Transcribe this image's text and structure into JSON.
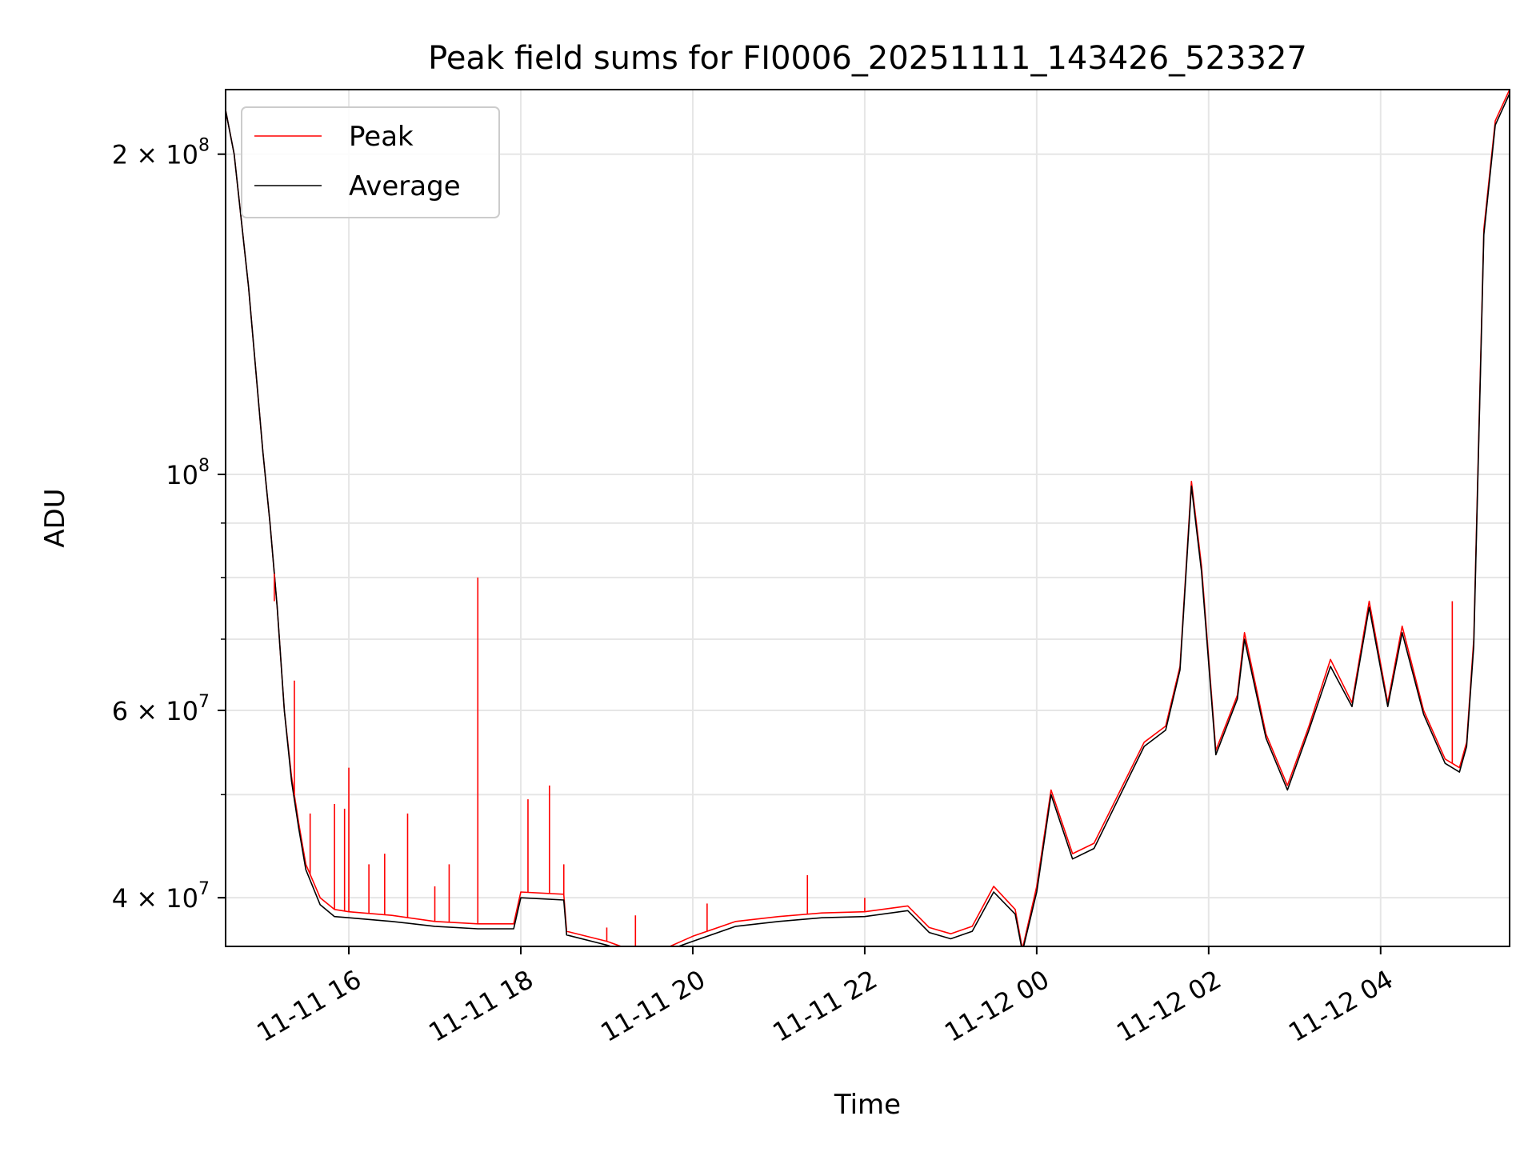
{
  "chart_data": {
    "type": "line",
    "title": "Peak field sums for FI0006_20251111_143426_523327",
    "xlabel": "Time",
    "ylabel": "ADU",
    "yscale": "log",
    "grid": true,
    "legend_placement": "top-left",
    "xlim": [
      "2025-11-11 14:34",
      "2025-11-12 05:30"
    ],
    "ylim": [
      36000000,
      230000000
    ],
    "x_ticks": [
      {
        "value": "2025-11-11 16:00",
        "label": "11-11 16"
      },
      {
        "value": "2025-11-11 18:00",
        "label": "11-11 18"
      },
      {
        "value": "2025-11-11 20:00",
        "label": "11-11 20"
      },
      {
        "value": "2025-11-11 22:00",
        "label": "11-11 22"
      },
      {
        "value": "2025-11-12 00:00",
        "label": "11-12 00"
      },
      {
        "value": "2025-11-12 02:00",
        "label": "11-12 02"
      },
      {
        "value": "2025-11-12 04:00",
        "label": "11-12 04"
      }
    ],
    "y_ticks_major": [
      {
        "value": 40000000,
        "label_base": "4 × 10",
        "label_exp": "7"
      },
      {
        "value": 60000000,
        "label_base": "6 × 10",
        "label_exp": "7"
      },
      {
        "value": 100000000,
        "label_base": "10",
        "label_exp": "8"
      },
      {
        "value": 200000000,
        "label_base": "2 × 10",
        "label_exp": "8"
      }
    ],
    "y_ticks_minor": [
      50000000,
      70000000,
      80000000,
      90000000
    ],
    "series": [
      {
        "name": "Peak",
        "color": "#ff0000",
        "points": [
          [
            "2025-11-11 14:34",
            220000000
          ],
          [
            "2025-11-11 14:40",
            200000000
          ],
          [
            "2025-11-11 14:50",
            150000000
          ],
          [
            "2025-11-11 15:00",
            105000000
          ],
          [
            "2025-11-11 15:05",
            90000000
          ],
          [
            "2025-11-11 15:10",
            75000000
          ],
          [
            "2025-11-11 15:15",
            60000000
          ],
          [
            "2025-11-11 15:20",
            52000000
          ],
          [
            "2025-11-11 15:25",
            47000000
          ],
          [
            "2025-11-11 15:30",
            43000000
          ],
          [
            "2025-11-11 15:40",
            40000000
          ],
          [
            "2025-11-11 15:50",
            39000000
          ],
          [
            "2025-11-11 16:00",
            38800000
          ],
          [
            "2025-11-11 16:30",
            38500000
          ],
          [
            "2025-11-11 17:00",
            38000000
          ],
          [
            "2025-11-11 17:30",
            37800000
          ],
          [
            "2025-11-11 17:55",
            37800000
          ],
          [
            "2025-11-11 18:00",
            40500000
          ],
          [
            "2025-11-11 18:30",
            40300000
          ],
          [
            "2025-11-11 18:32",
            37200000
          ],
          [
            "2025-11-11 19:00",
            36400000
          ],
          [
            "2025-11-11 19:15",
            35800000
          ],
          [
            "2025-11-11 19:40",
            35800000
          ],
          [
            "2025-11-11 20:00",
            36800000
          ],
          [
            "2025-11-11 20:30",
            38000000
          ],
          [
            "2025-11-11 21:00",
            38400000
          ],
          [
            "2025-11-11 21:30",
            38700000
          ],
          [
            "2025-11-11 22:00",
            38800000
          ],
          [
            "2025-11-11 22:30",
            39300000
          ],
          [
            "2025-11-11 22:45",
            37500000
          ],
          [
            "2025-11-11 23:00",
            37000000
          ],
          [
            "2025-11-11 23:15",
            37600000
          ],
          [
            "2025-11-11 23:30",
            41000000
          ],
          [
            "2025-11-11 23:45",
            39000000
          ],
          [
            "2025-11-11 23:50",
            35800000
          ],
          [
            "2025-11-12 00:00",
            41000000
          ],
          [
            "2025-11-12 00:10",
            50500000
          ],
          [
            "2025-11-12 00:25",
            44000000
          ],
          [
            "2025-11-12 00:40",
            45000000
          ],
          [
            "2025-11-12 01:00",
            51000000
          ],
          [
            "2025-11-12 01:15",
            56000000
          ],
          [
            "2025-11-12 01:30",
            58000000
          ],
          [
            "2025-11-12 01:40",
            66000000
          ],
          [
            "2025-11-12 01:48",
            98500000
          ],
          [
            "2025-11-12 01:55",
            82000000
          ],
          [
            "2025-11-12 02:05",
            55000000
          ],
          [
            "2025-11-12 02:20",
            62000000
          ],
          [
            "2025-11-12 02:25",
            71000000
          ],
          [
            "2025-11-12 02:40",
            57000000
          ],
          [
            "2025-11-12 02:55",
            51000000
          ],
          [
            "2025-11-12 03:10",
            58000000
          ],
          [
            "2025-11-12 03:25",
            67000000
          ],
          [
            "2025-11-12 03:40",
            61000000
          ],
          [
            "2025-11-12 03:52",
            76000000
          ],
          [
            "2025-11-12 04:05",
            61000000
          ],
          [
            "2025-11-12 04:15",
            72000000
          ],
          [
            "2025-11-12 04:30",
            60000000
          ],
          [
            "2025-11-12 04:45",
            54000000
          ],
          [
            "2025-11-12 04:55",
            53000000
          ],
          [
            "2025-11-12 05:00",
            56000000
          ],
          [
            "2025-11-12 05:05",
            70000000
          ],
          [
            "2025-11-12 05:12",
            170000000
          ],
          [
            "2025-11-12 05:20",
            215000000
          ],
          [
            "2025-11-12 05:30",
            230000000
          ]
        ]
      },
      {
        "name": "Average",
        "color": "#000000",
        "points": [
          [
            "2025-11-11 14:34",
            220000000
          ],
          [
            "2025-11-11 14:40",
            200000000
          ],
          [
            "2025-11-11 14:50",
            150000000
          ],
          [
            "2025-11-11 15:00",
            105000000
          ],
          [
            "2025-11-11 15:05",
            90000000
          ],
          [
            "2025-11-11 15:10",
            75000000
          ],
          [
            "2025-11-11 15:15",
            60000000
          ],
          [
            "2025-11-11 15:20",
            51500000
          ],
          [
            "2025-11-11 15:25",
            46500000
          ],
          [
            "2025-11-11 15:30",
            42500000
          ],
          [
            "2025-11-11 15:40",
            39400000
          ],
          [
            "2025-11-11 15:50",
            38400000
          ],
          [
            "2025-11-11 16:00",
            38300000
          ],
          [
            "2025-11-11 16:30",
            38000000
          ],
          [
            "2025-11-11 17:00",
            37600000
          ],
          [
            "2025-11-11 17:30",
            37400000
          ],
          [
            "2025-11-11 17:55",
            37400000
          ],
          [
            "2025-11-11 18:00",
            40000000
          ],
          [
            "2025-11-11 18:30",
            39800000
          ],
          [
            "2025-11-11 18:32",
            36900000
          ],
          [
            "2025-11-11 19:00",
            36100000
          ],
          [
            "2025-11-11 19:15",
            35600000
          ],
          [
            "2025-11-11 19:40",
            35600000
          ],
          [
            "2025-11-11 20:00",
            36400000
          ],
          [
            "2025-11-11 20:30",
            37600000
          ],
          [
            "2025-11-11 21:00",
            38000000
          ],
          [
            "2025-11-11 21:30",
            38300000
          ],
          [
            "2025-11-11 22:00",
            38400000
          ],
          [
            "2025-11-11 22:30",
            38900000
          ],
          [
            "2025-11-11 22:45",
            37100000
          ],
          [
            "2025-11-11 23:00",
            36600000
          ],
          [
            "2025-11-11 23:15",
            37200000
          ],
          [
            "2025-11-11 23:30",
            40500000
          ],
          [
            "2025-11-11 23:45",
            38600000
          ],
          [
            "2025-11-11 23:50",
            35600000
          ],
          [
            "2025-11-12 00:00",
            40500000
          ],
          [
            "2025-11-12 00:10",
            50000000
          ],
          [
            "2025-11-12 00:25",
            43500000
          ],
          [
            "2025-11-12 00:40",
            44500000
          ],
          [
            "2025-11-12 01:00",
            50500000
          ],
          [
            "2025-11-12 01:15",
            55500000
          ],
          [
            "2025-11-12 01:30",
            57500000
          ],
          [
            "2025-11-12 01:40",
            65500000
          ],
          [
            "2025-11-12 01:48",
            97500000
          ],
          [
            "2025-11-12 01:55",
            81000000
          ],
          [
            "2025-11-12 02:05",
            54500000
          ],
          [
            "2025-11-12 02:20",
            61500000
          ],
          [
            "2025-11-12 02:25",
            70000000
          ],
          [
            "2025-11-12 02:40",
            56500000
          ],
          [
            "2025-11-12 02:55",
            50500000
          ],
          [
            "2025-11-12 03:10",
            57500000
          ],
          [
            "2025-11-12 03:25",
            66000000
          ],
          [
            "2025-11-12 03:40",
            60500000
          ],
          [
            "2025-11-12 03:52",
            75000000
          ],
          [
            "2025-11-12 04:05",
            60500000
          ],
          [
            "2025-11-12 04:15",
            71000000
          ],
          [
            "2025-11-12 04:30",
            59500000
          ],
          [
            "2025-11-12 04:45",
            53500000
          ],
          [
            "2025-11-12 04:55",
            52500000
          ],
          [
            "2025-11-12 05:00",
            55500000
          ],
          [
            "2025-11-12 05:05",
            69000000
          ],
          [
            "2025-11-12 05:12",
            168000000
          ],
          [
            "2025-11-12 05:20",
            213000000
          ],
          [
            "2025-11-12 05:30",
            228000000
          ]
        ]
      }
    ],
    "spikes": [
      {
        "series": "Peak",
        "x": "2025-11-11 15:08",
        "value": 76000000
      },
      {
        "series": "Peak",
        "x": "2025-11-11 15:22",
        "value": 64000000
      },
      {
        "series": "Peak",
        "x": "2025-11-11 15:33",
        "value": 48000000
      },
      {
        "series": "Peak",
        "x": "2025-11-11 15:50",
        "value": 49000000
      },
      {
        "series": "Peak",
        "x": "2025-11-11 15:57",
        "value": 48500000
      },
      {
        "series": "Peak",
        "x": "2025-11-11 16:00",
        "value": 53000000
      },
      {
        "series": "Peak",
        "x": "2025-11-11 16:14",
        "value": 43000000
      },
      {
        "series": "Peak",
        "x": "2025-11-11 16:25",
        "value": 44000000
      },
      {
        "series": "Peak",
        "x": "2025-11-11 16:41",
        "value": 48000000
      },
      {
        "series": "Peak",
        "x": "2025-11-11 17:00",
        "value": 41000000
      },
      {
        "series": "Peak",
        "x": "2025-11-11 17:10",
        "value": 43000000
      },
      {
        "series": "Peak",
        "x": "2025-11-11 17:30",
        "value": 80000000
      },
      {
        "series": "Peak",
        "x": "2025-11-11 18:05",
        "value": 49500000
      },
      {
        "series": "Peak",
        "x": "2025-11-11 18:20",
        "value": 51000000
      },
      {
        "series": "Peak",
        "x": "2025-11-11 18:30",
        "value": 43000000
      },
      {
        "series": "Peak",
        "x": "2025-11-11 19:00",
        "value": 37500000
      },
      {
        "series": "Peak",
        "x": "2025-11-11 19:20",
        "value": 38500000
      },
      {
        "series": "Peak",
        "x": "2025-11-11 20:10",
        "value": 39500000
      },
      {
        "series": "Peak",
        "x": "2025-11-11 21:20",
        "value": 42000000
      },
      {
        "series": "Peak",
        "x": "2025-11-11 22:00",
        "value": 40000000
      },
      {
        "series": "Peak",
        "x": "2025-11-12 04:50",
        "value": 76000000
      }
    ]
  }
}
